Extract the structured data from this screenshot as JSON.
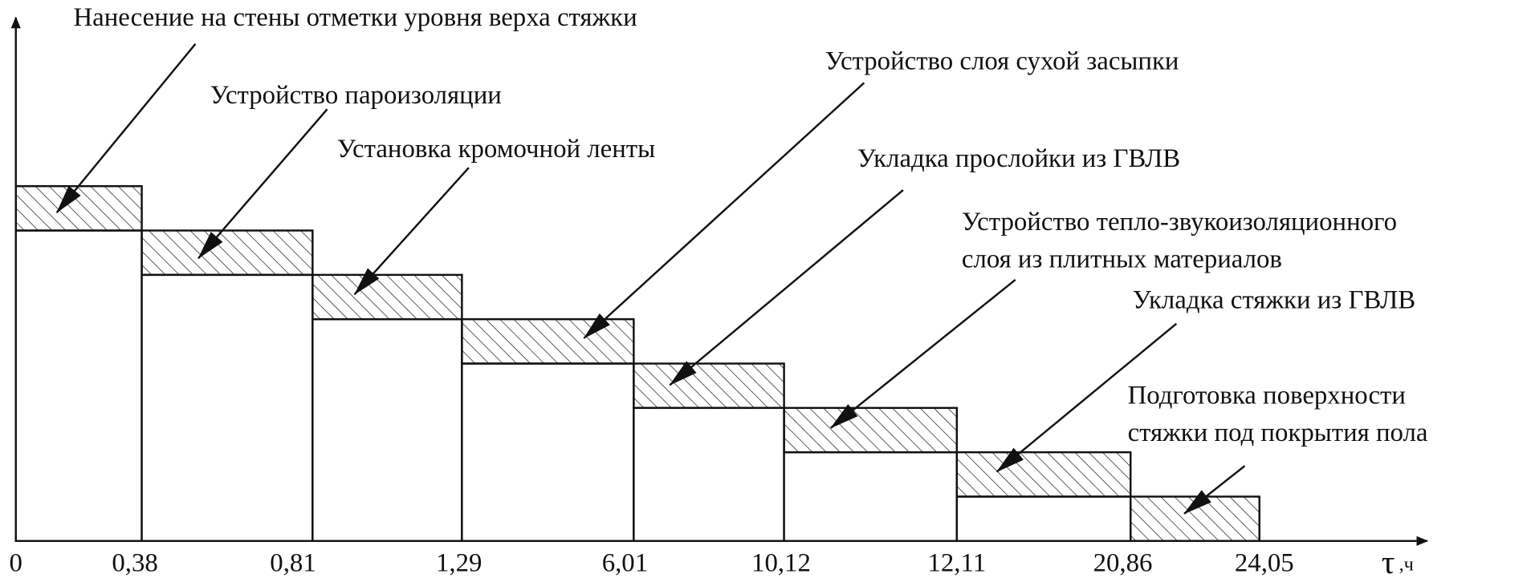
{
  "tasks": [
    {
      "lines": [
        "Нанесение на стены отметки уровня верха стяжки"
      ]
    },
    {
      "lines": [
        "Устройство пароизоляции"
      ]
    },
    {
      "lines": [
        "Установка кромочной ленты"
      ]
    },
    {
      "lines": [
        "Устройство слоя сухой засыпки"
      ]
    },
    {
      "lines": [
        "Укладка прослойки из ГВЛВ"
      ]
    },
    {
      "lines": [
        "Устройство тепло-звукоизоляционного",
        "слоя  из плитных материалов"
      ]
    },
    {
      "lines": [
        "Укладка стяжки из ГВЛВ"
      ]
    },
    {
      "lines": [
        "Подготовка поверхности",
        "стяжки под покрытия пола"
      ]
    }
  ],
  "axis": {
    "ticks": [
      "0",
      "0,38",
      "0,81",
      "1,29",
      "6,01",
      "10,12",
      "12,11",
      "20,86",
      "24,05"
    ],
    "symbol": "τ",
    "unit": ",ч"
  }
}
